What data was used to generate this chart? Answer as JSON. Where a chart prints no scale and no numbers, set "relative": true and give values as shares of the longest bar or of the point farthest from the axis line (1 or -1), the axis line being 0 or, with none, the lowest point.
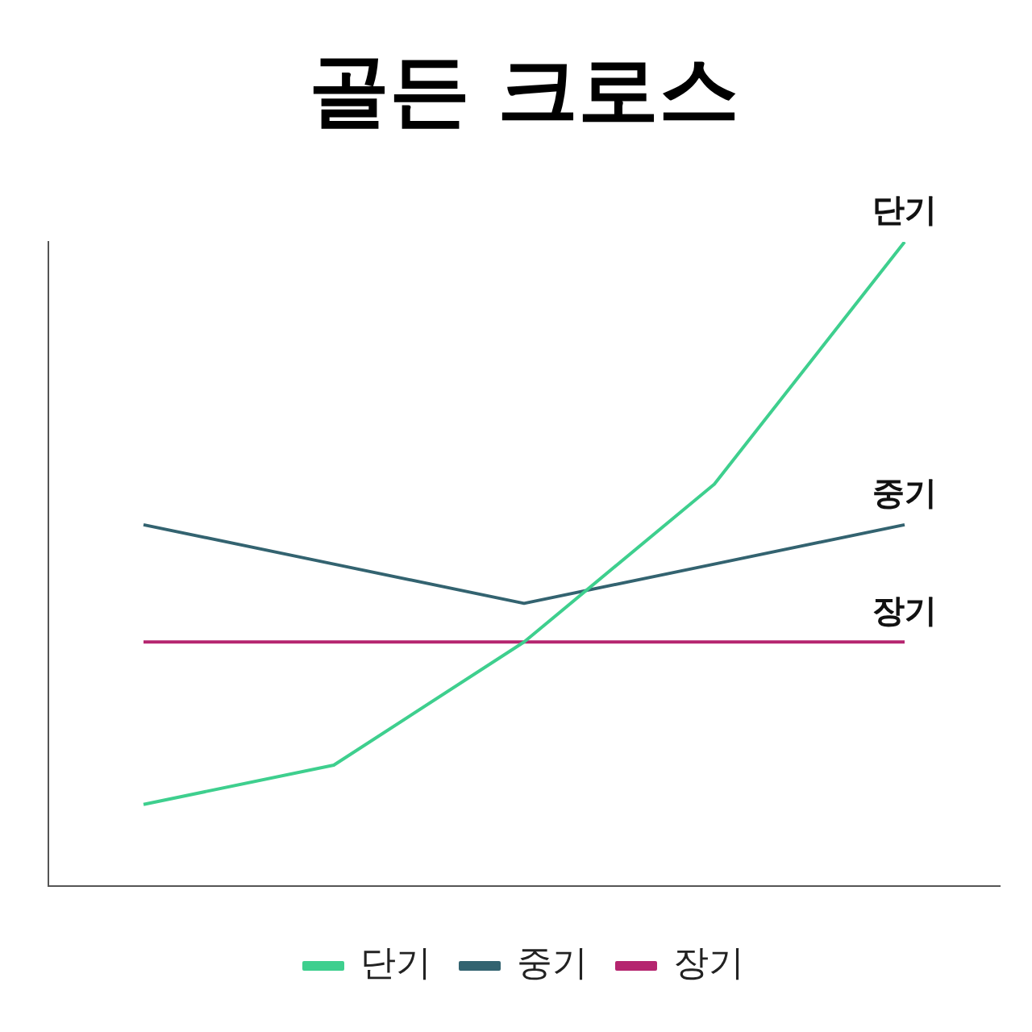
{
  "chart_data": {
    "type": "line",
    "title": "골든 크로스",
    "categories": [
      null,
      null,
      null,
      null,
      null
    ],
    "relative": true,
    "series": [
      {
        "name": "단기",
        "color": "#3ecf8e",
        "values": [
          0.127,
          0.188,
          0.379,
          0.624,
          1
        ]
      },
      {
        "name": "중기",
        "color": "#336370",
        "values": [
          0.561,
          0.5,
          0.439,
          0.5,
          0.561
        ]
      },
      {
        "name": "장기",
        "color": "#b5256f",
        "values": [
          0.379,
          0.379,
          0.379,
          0.379,
          0.379
        ]
      }
    ],
    "legend": "bottom",
    "grid": false,
    "marker": "none",
    "line_style": "solid"
  }
}
